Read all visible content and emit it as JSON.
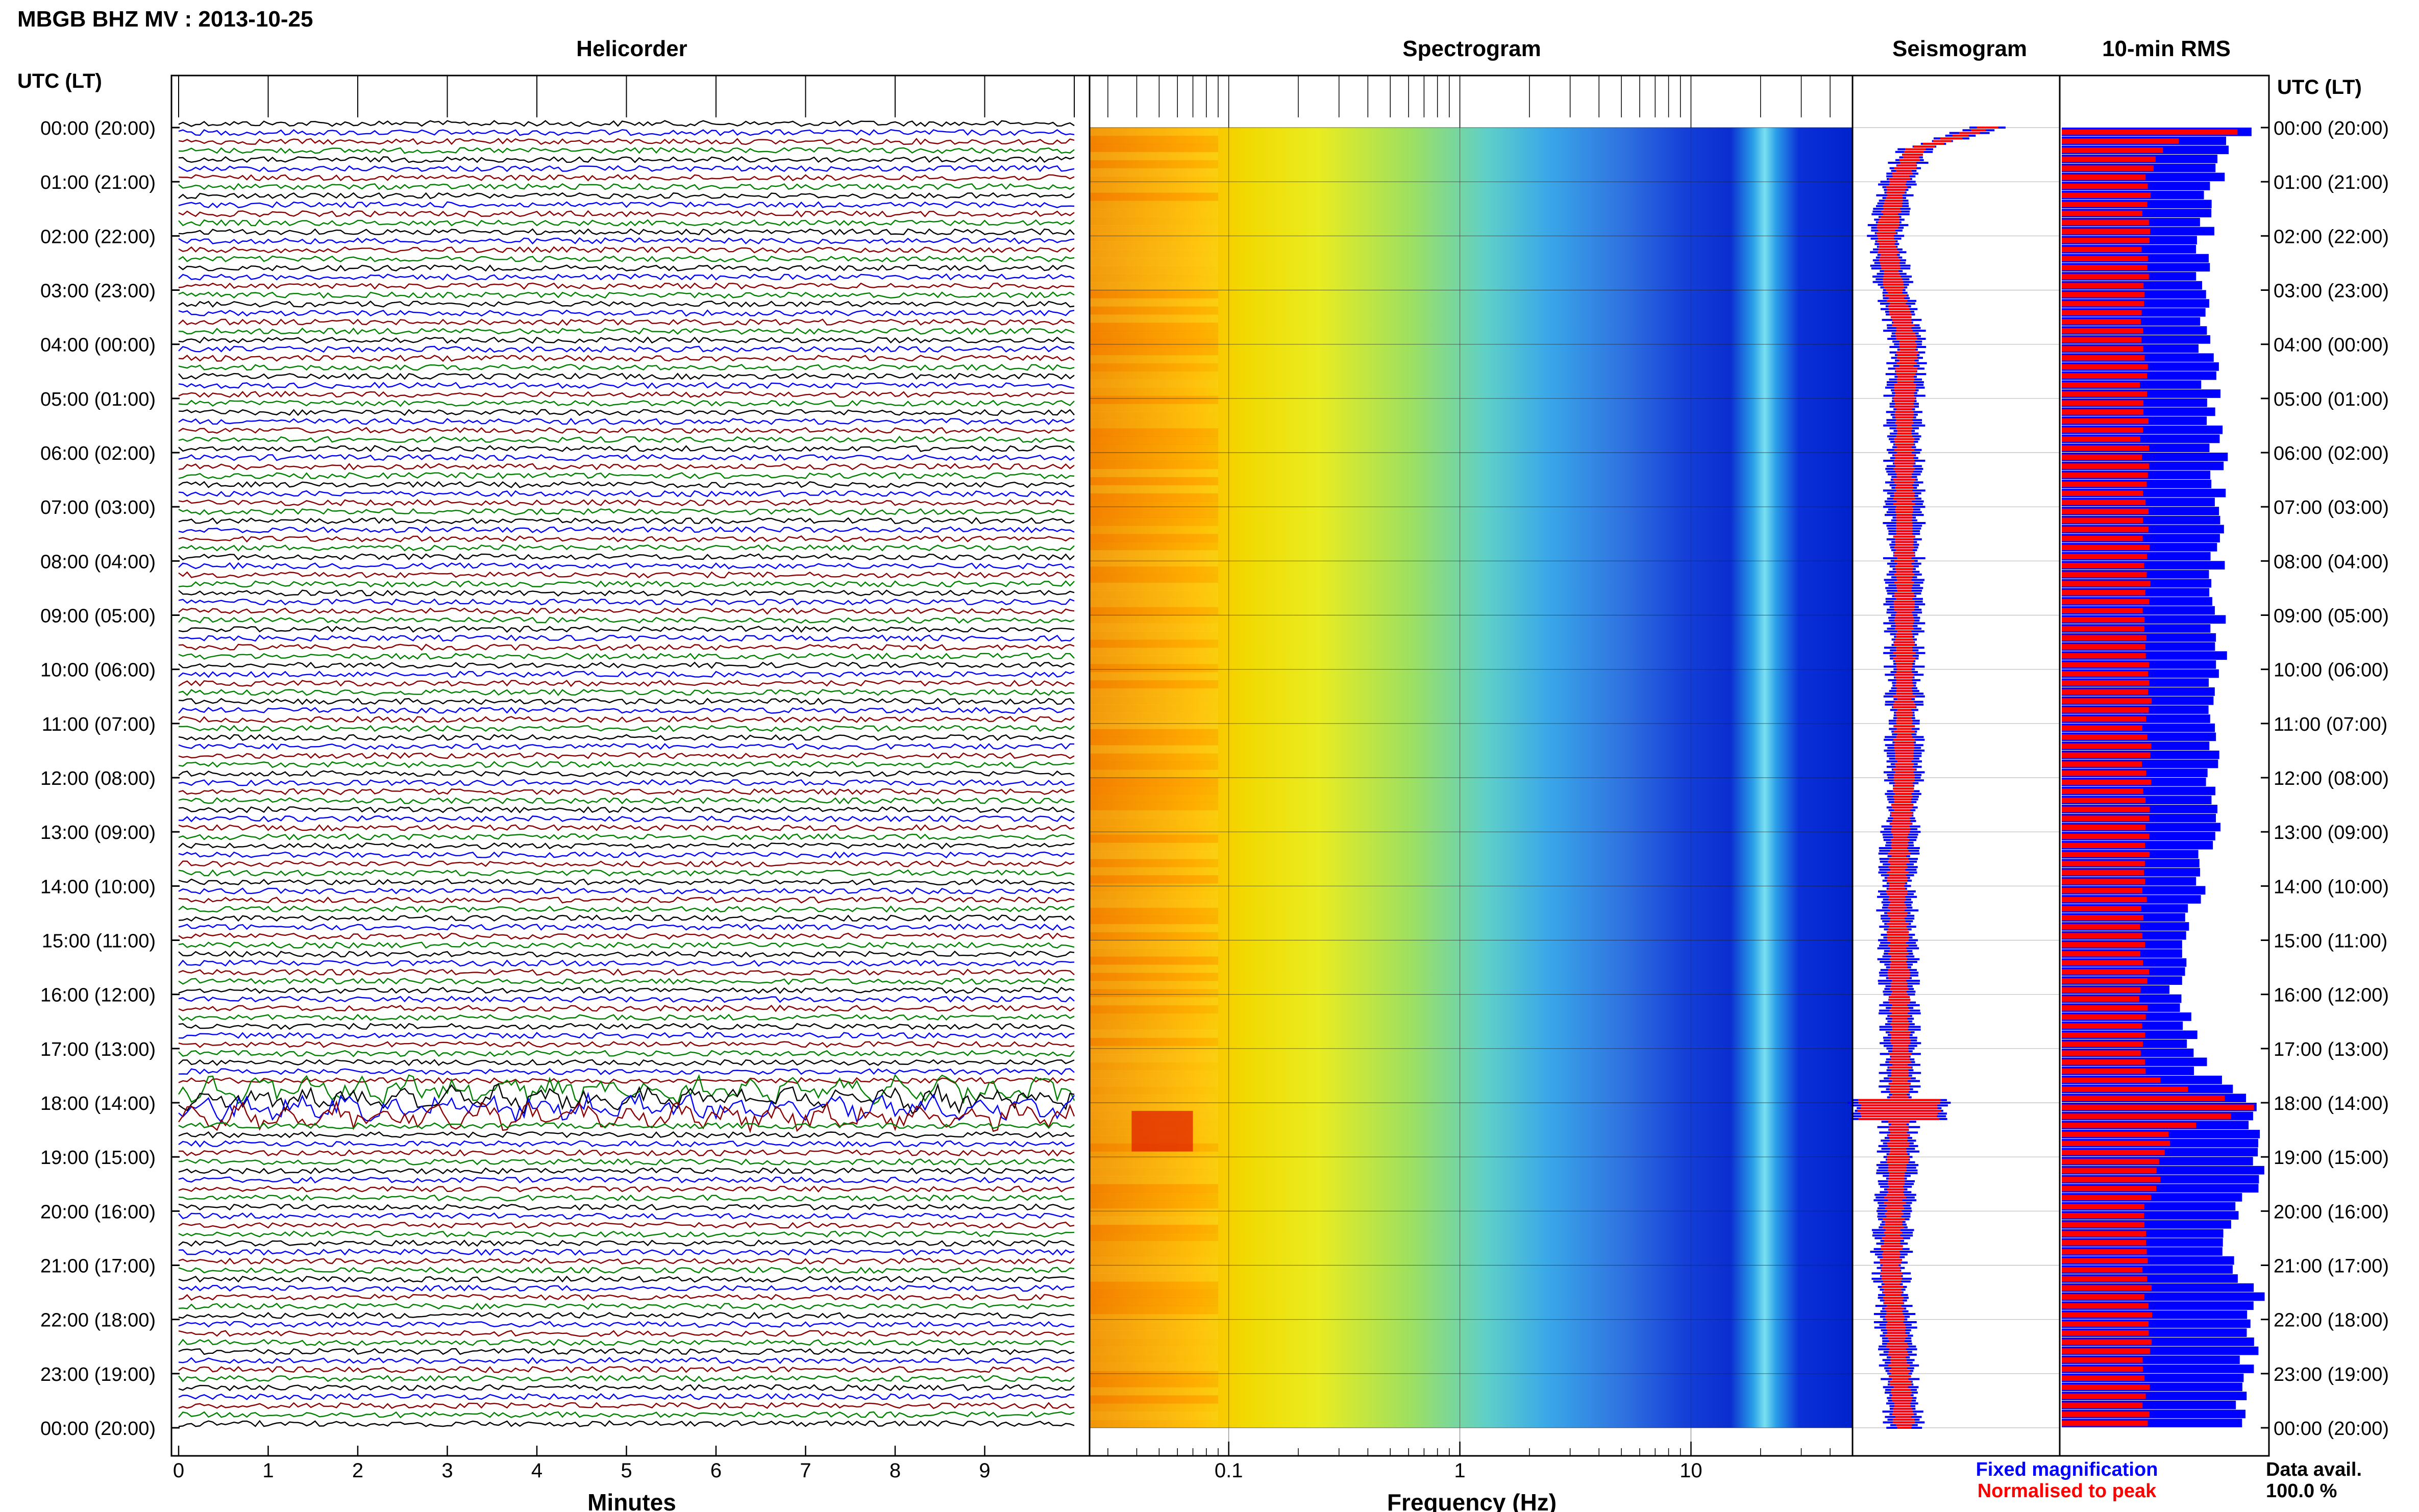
{
  "header": {
    "title": "MBGB BHZ MV : 2013-10-25",
    "utc_label": "UTC (LT)"
  },
  "panels": {
    "helicorder": "Helicorder",
    "spectrogram": "Spectrogram",
    "seismogram": "Seismogram",
    "rms": "10-min RMS"
  },
  "axes": {
    "minutes_label": "Minutes",
    "frequency_label": "Frequency (Hz)",
    "minute_ticks": [
      "0",
      "1",
      "2",
      "3",
      "4",
      "5",
      "6",
      "7",
      "8",
      "9"
    ],
    "frequency_ticks": [
      {
        "value": 0.1,
        "label": "0.1"
      },
      {
        "value": 1,
        "label": "1"
      },
      {
        "value": 10,
        "label": "10"
      }
    ],
    "frequency_range_hz": [
      0.025,
      50
    ],
    "minute_range": [
      0,
      10
    ]
  },
  "time_labels": [
    "00:00 (20:00)",
    "01:00 (21:00)",
    "02:00 (22:00)",
    "03:00 (23:00)",
    "04:00 (00:00)",
    "05:00 (01:00)",
    "06:00 (02:00)",
    "07:00 (03:00)",
    "08:00 (04:00)",
    "09:00 (05:00)",
    "10:00 (06:00)",
    "11:00 (07:00)",
    "12:00 (08:00)",
    "13:00 (09:00)",
    "14:00 (10:00)",
    "15:00 (11:00)",
    "16:00 (12:00)",
    "17:00 (13:00)",
    "18:00 (14:00)",
    "19:00 (15:00)",
    "20:00 (16:00)",
    "21:00 (17:00)",
    "22:00 (18:00)",
    "23:00 (19:00)",
    "00:00 (20:00)"
  ],
  "legend": {
    "fixed": "Fixed magnification",
    "normalised": "Normalised to peak",
    "fixed_color": "#0000ff",
    "normalised_color": "#ff0000"
  },
  "data_avail": {
    "label": "Data avail.",
    "value": "100.0 %"
  },
  "colors": {
    "trace_cycle": [
      "#000000",
      "#0000ff",
      "#8b0000",
      "#008000"
    ],
    "rms_fixed": "#0000ff",
    "rms_norm": "#ff0000"
  },
  "chart_data": {
    "type": "heatmap",
    "hours": 24,
    "traces_per_hour": 6,
    "event_hour": 18.1,
    "rms_fixed_profile": [
      {
        "hour": 0.0,
        "width": 1.0
      },
      {
        "hour": 0.3,
        "width": 0.78
      },
      {
        "hour": 1.0,
        "width": 0.75
      },
      {
        "hour": 3.0,
        "width": 0.68
      },
      {
        "hour": 6.0,
        "width": 0.77
      },
      {
        "hour": 10.0,
        "width": 0.76
      },
      {
        "hour": 13.0,
        "width": 0.74
      },
      {
        "hour": 16.0,
        "width": 0.55
      },
      {
        "hour": 17.5,
        "width": 0.7
      },
      {
        "hour": 18.0,
        "width": 0.95
      },
      {
        "hour": 19.5,
        "width": 0.96
      },
      {
        "hour": 20.5,
        "width": 0.77
      },
      {
        "hour": 21.5,
        "width": 0.95
      },
      {
        "hour": 24.0,
        "width": 0.88
      }
    ],
    "rms_norm_profile": [
      {
        "hour": 0.0,
        "width": 1.0
      },
      {
        "hour": 0.3,
        "width": 0.5
      },
      {
        "hour": 1.0,
        "width": 0.42
      },
      {
        "hour": 5.0,
        "width": 0.4
      },
      {
        "hour": 10.0,
        "width": 0.42
      },
      {
        "hour": 17.5,
        "width": 0.4
      },
      {
        "hour": 18.1,
        "width": 0.98
      },
      {
        "hour": 18.5,
        "width": 0.55
      },
      {
        "hour": 20.0,
        "width": 0.42
      },
      {
        "hour": 24.0,
        "width": 0.42
      }
    ],
    "seismo_profile": [
      {
        "hour": 0.0,
        "value": 1.0
      },
      {
        "hour": 0.4,
        "value": 0.42
      },
      {
        "hour": 1.0,
        "value": 0.28
      },
      {
        "hour": 2.0,
        "value": 0.18
      },
      {
        "hour": 3.0,
        "value": 0.25
      },
      {
        "hour": 4.0,
        "value": 0.36
      },
      {
        "hour": 5.0,
        "value": 0.33
      },
      {
        "hour": 8.0,
        "value": 0.33
      },
      {
        "hour": 12.0,
        "value": 0.33
      },
      {
        "hour": 14.0,
        "value": 0.27
      },
      {
        "hour": 17.0,
        "value": 0.3
      },
      {
        "hour": 19.0,
        "value": 0.28
      },
      {
        "hour": 21.0,
        "value": 0.22
      },
      {
        "hour": 24.0,
        "value": 0.33
      }
    ]
  }
}
